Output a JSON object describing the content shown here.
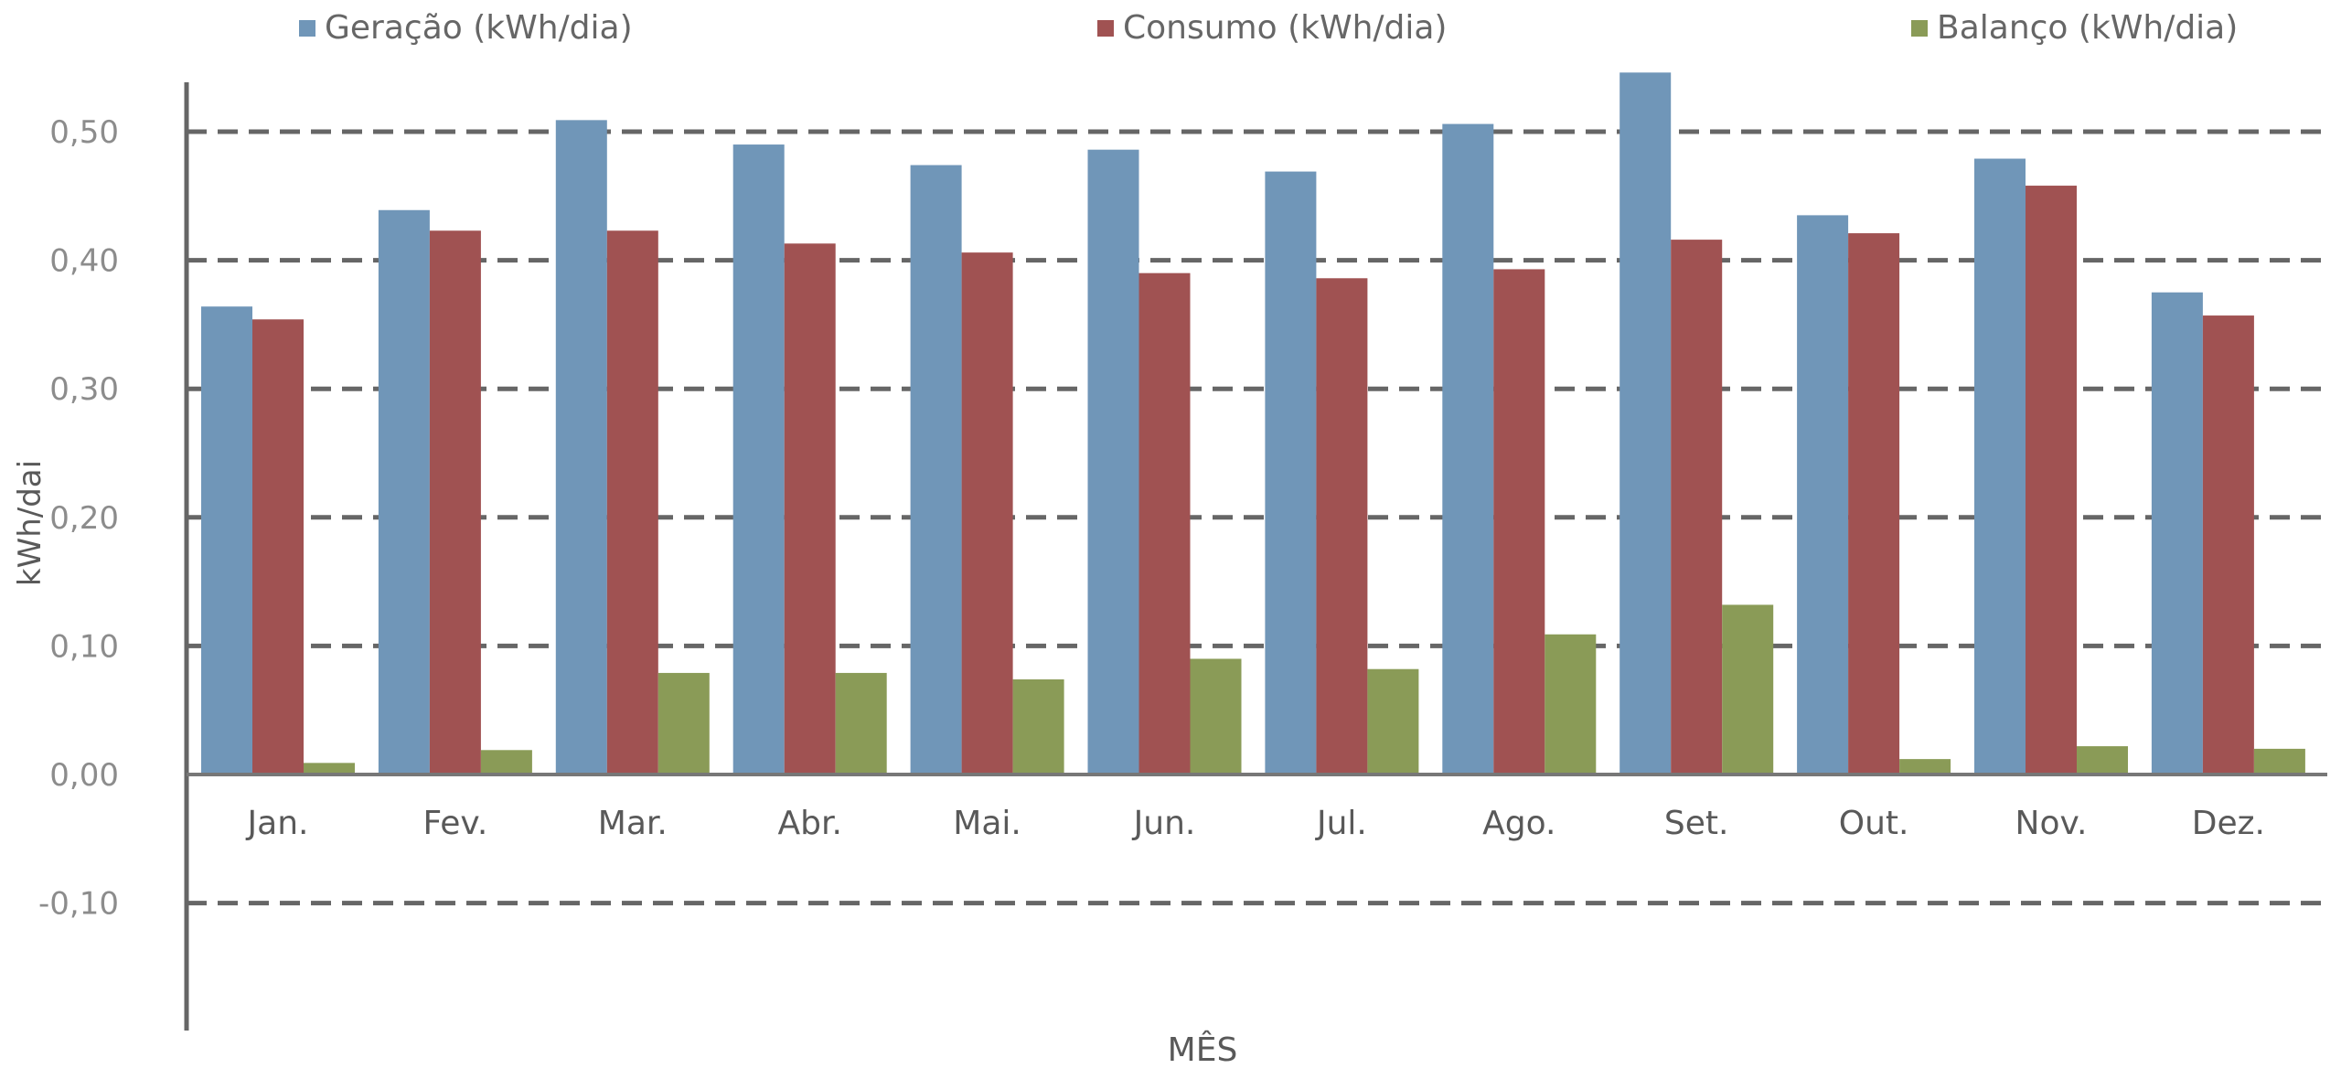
{
  "chart_data": {
    "type": "bar",
    "title": "",
    "xlabel": "MÊS",
    "ylabel": "kWh/dai",
    "ylim": [
      -0.2,
      0.55
    ],
    "yticks": [
      -0.1,
      0.0,
      0.1,
      0.2,
      0.3,
      0.4,
      0.5
    ],
    "ytick_labels": [
      "-0,10",
      "0,00",
      "0,10",
      "0,20",
      "0,30",
      "0,40",
      "0,50"
    ],
    "grid": true,
    "legend_position": "top",
    "categories": [
      "Jan.",
      "Fev.",
      "Mar.",
      "Abr.",
      "Mai.",
      "Jun.",
      "Jul.",
      "Ago.",
      "Set.",
      "Out.",
      "Nov.",
      "Dez."
    ],
    "series": [
      {
        "name": "Geração (kWh/dia)",
        "color": "#7096b8",
        "values": [
          0.364,
          0.439,
          0.509,
          0.49,
          0.474,
          0.486,
          0.469,
          0.506,
          0.546,
          0.435,
          0.479,
          0.375
        ]
      },
      {
        "name": "Consumo (kWh/dia)",
        "color": "#a05252",
        "values": [
          0.354,
          0.423,
          0.423,
          0.413,
          0.406,
          0.39,
          0.386,
          0.393,
          0.416,
          0.421,
          0.458,
          0.357
        ]
      },
      {
        "name": "Balanço (kWh/dia)",
        "color": "#8a9b57",
        "values": [
          0.009,
          0.019,
          0.079,
          0.079,
          0.074,
          0.09,
          0.082,
          0.109,
          0.132,
          0.012,
          0.022,
          0.02
        ]
      }
    ]
  }
}
